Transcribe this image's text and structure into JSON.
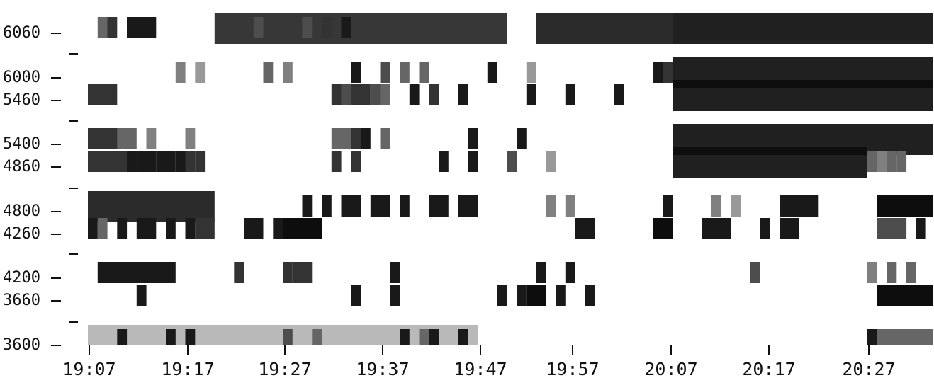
{
  "chart_data": {
    "type": "heatmap",
    "title": "",
    "xlabel": "",
    "ylabel": "",
    "grid": false,
    "x_ticks": [
      "19:07",
      "19:17",
      "19:27",
      "19:37",
      "19:47",
      "19:57",
      "20:07",
      "20:17",
      "20:27"
    ],
    "y_ticks": [
      "6060",
      "6000",
      "5460",
      "5400",
      "4860",
      "4800",
      "4260",
      "4200",
      "3660",
      "3600"
    ],
    "color_scale": [
      "#ffffff",
      "#000000"
    ],
    "bands": [
      {
        "center": "6060",
        "cells": [
          {
            "t": "19:08",
            "d": 1,
            "v": 0.6
          },
          {
            "t": "19:09",
            "d": 1,
            "v": 0.8
          },
          {
            "t": "19:11",
            "d": 2,
            "v": 0.9
          },
          {
            "t": "19:13",
            "d": 1,
            "v": 0.9
          },
          {
            "t": "19:20",
            "d": 30,
            "v": 0.85
          },
          {
            "t": "19:24",
            "d": 1,
            "v": 0.7
          },
          {
            "t": "19:29",
            "d": 1,
            "v": 0.7
          },
          {
            "t": "19:31",
            "d": 1,
            "v": 0.8
          },
          {
            "t": "19:33",
            "d": 1,
            "v": 0.9
          },
          {
            "t": "19:53",
            "d": 14,
            "v": 0.9
          },
          {
            "t": "20:07",
            "d": 28,
            "v": 0.95
          }
        ]
      },
      {
        "center": "6000",
        "cells": [
          {
            "t": "19:16",
            "d": 1,
            "v": 0.5
          },
          {
            "t": "19:18",
            "d": 1,
            "v": 0.4
          },
          {
            "t": "19:25",
            "d": 1,
            "v": 0.6
          },
          {
            "t": "19:27",
            "d": 1,
            "v": 0.5
          },
          {
            "t": "19:34",
            "d": 1,
            "v": 0.9
          },
          {
            "t": "19:37",
            "d": 1,
            "v": 0.7
          },
          {
            "t": "19:39",
            "d": 1,
            "v": 0.6
          },
          {
            "t": "19:41",
            "d": 1,
            "v": 0.6
          },
          {
            "t": "19:48",
            "d": 1,
            "v": 0.9
          },
          {
            "t": "19:52",
            "d": 1,
            "v": 0.4
          },
          {
            "t": "20:05",
            "d": 1,
            "v": 0.9
          },
          {
            "t": "20:06",
            "d": 1,
            "v": 0.8
          },
          {
            "t": "20:07",
            "d": 28,
            "v": 0.95
          }
        ]
      },
      {
        "center": "5460",
        "cells": [
          {
            "t": "19:07",
            "d": 3,
            "v": 0.8
          },
          {
            "t": "19:32",
            "d": 1,
            "v": 0.8
          },
          {
            "t": "19:33",
            "d": 1,
            "v": 0.7
          },
          {
            "t": "19:34",
            "d": 1,
            "v": 0.8
          },
          {
            "t": "19:35",
            "d": 1,
            "v": 0.8
          },
          {
            "t": "19:36",
            "d": 1,
            "v": 0.7
          },
          {
            "t": "19:37",
            "d": 1,
            "v": 0.6
          },
          {
            "t": "19:40",
            "d": 1,
            "v": 0.9
          },
          {
            "t": "19:42",
            "d": 1,
            "v": 0.8
          },
          {
            "t": "19:45",
            "d": 1,
            "v": 0.9
          },
          {
            "t": "19:52",
            "d": 1,
            "v": 0.9
          },
          {
            "t": "19:56",
            "d": 1,
            "v": 0.9
          },
          {
            "t": "20:01",
            "d": 1,
            "v": 0.9
          },
          {
            "t": "20:07",
            "d": 28,
            "v": 0.95
          }
        ]
      },
      {
        "center": "5400",
        "cells": [
          {
            "t": "19:07",
            "d": 4,
            "v": 0.8
          },
          {
            "t": "19:10",
            "d": 2,
            "v": 0.6
          },
          {
            "t": "19:13",
            "d": 1,
            "v": 0.5
          },
          {
            "t": "19:17",
            "d": 1,
            "v": 0.5
          },
          {
            "t": "19:32",
            "d": 2,
            "v": 0.6
          },
          {
            "t": "19:34",
            "d": 1,
            "v": 0.8
          },
          {
            "t": "19:35",
            "d": 1,
            "v": 0.9
          },
          {
            "t": "19:37",
            "d": 1,
            "v": 0.6
          },
          {
            "t": "19:46",
            "d": 1,
            "v": 0.9
          },
          {
            "t": "19:51",
            "d": 1,
            "v": 0.9
          },
          {
            "t": "20:07",
            "d": 28,
            "v": 0.95
          }
        ]
      },
      {
        "center": "4860",
        "cells": [
          {
            "t": "19:07",
            "d": 6,
            "v": 0.8
          },
          {
            "t": "19:11",
            "d": 1,
            "v": 0.9
          },
          {
            "t": "19:12",
            "d": 1,
            "v": 0.9
          },
          {
            "t": "19:13",
            "d": 1,
            "v": 0.9
          },
          {
            "t": "19:14",
            "d": 1,
            "v": 0.9
          },
          {
            "t": "19:15",
            "d": 1,
            "v": 0.9
          },
          {
            "t": "19:16",
            "d": 1,
            "v": 0.9
          },
          {
            "t": "19:17",
            "d": 1,
            "v": 0.8
          },
          {
            "t": "19:18",
            "d": 1,
            "v": 0.8
          },
          {
            "t": "19:32",
            "d": 1,
            "v": 0.8
          },
          {
            "t": "19:34",
            "d": 1,
            "v": 0.8
          },
          {
            "t": "19:43",
            "d": 1,
            "v": 0.9
          },
          {
            "t": "19:46",
            "d": 1,
            "v": 0.9
          },
          {
            "t": "19:50",
            "d": 1,
            "v": 0.7
          },
          {
            "t": "19:54",
            "d": 1,
            "v": 0.4
          },
          {
            "t": "20:07",
            "d": 20,
            "v": 0.95
          },
          {
            "t": "20:27",
            "d": 1,
            "v": 0.6
          },
          {
            "t": "20:28",
            "d": 1,
            "v": 0.5
          },
          {
            "t": "20:29",
            "d": 1,
            "v": 0.6
          },
          {
            "t": "20:30",
            "d": 1,
            "v": 0.6
          }
        ]
      },
      {
        "center": "4800",
        "cells": [
          {
            "t": "19:07",
            "d": 13,
            "v": 0.9
          },
          {
            "t": "19:29",
            "d": 1,
            "v": 0.9
          },
          {
            "t": "19:31",
            "d": 1,
            "v": 0.9
          },
          {
            "t": "19:33",
            "d": 1,
            "v": 0.9
          },
          {
            "t": "19:34",
            "d": 1,
            "v": 0.9
          },
          {
            "t": "19:36",
            "d": 1,
            "v": 0.9
          },
          {
            "t": "19:37",
            "d": 1,
            "v": 0.9
          },
          {
            "t": "19:39",
            "d": 1,
            "v": 0.9
          },
          {
            "t": "19:42",
            "d": 1,
            "v": 0.9
          },
          {
            "t": "19:43",
            "d": 1,
            "v": 0.9
          },
          {
            "t": "19:45",
            "d": 1,
            "v": 0.9
          },
          {
            "t": "19:46",
            "d": 1,
            "v": 0.9
          },
          {
            "t": "19:54",
            "d": 1,
            "v": 0.5
          },
          {
            "t": "19:56",
            "d": 1,
            "v": 0.5
          },
          {
            "t": "20:06",
            "d": 1,
            "v": 0.9
          },
          {
            "t": "20:11",
            "d": 1,
            "v": 0.5
          },
          {
            "t": "20:13",
            "d": 1,
            "v": 0.4
          },
          {
            "t": "20:18",
            "d": 4,
            "v": 0.9
          },
          {
            "t": "20:28",
            "d": 6,
            "v": 0.95
          }
        ]
      },
      {
        "center": "4260",
        "cells": [
          {
            "t": "19:07",
            "d": 1,
            "v": 0.9
          },
          {
            "t": "19:08",
            "d": 1,
            "v": 0.6
          },
          {
            "t": "19:10",
            "d": 1,
            "v": 0.9
          },
          {
            "t": "19:12",
            "d": 1,
            "v": 0.9
          },
          {
            "t": "19:13",
            "d": 1,
            "v": 0.9
          },
          {
            "t": "19:15",
            "d": 1,
            "v": 0.9
          },
          {
            "t": "19:17",
            "d": 1,
            "v": 0.9
          },
          {
            "t": "19:18",
            "d": 2,
            "v": 0.8
          },
          {
            "t": "19:23",
            "d": 2,
            "v": 0.9
          },
          {
            "t": "19:26",
            "d": 1,
            "v": 0.9
          },
          {
            "t": "19:27",
            "d": 4,
            "v": 0.95
          },
          {
            "t": "19:57",
            "d": 1,
            "v": 0.9
          },
          {
            "t": "19:58",
            "d": 1,
            "v": 0.9
          },
          {
            "t": "20:05",
            "d": 2,
            "v": 0.95
          },
          {
            "t": "20:10",
            "d": 1,
            "v": 0.9
          },
          {
            "t": "20:11",
            "d": 1,
            "v": 0.9
          },
          {
            "t": "20:12",
            "d": 1,
            "v": 0.9
          },
          {
            "t": "20:16",
            "d": 1,
            "v": 0.9
          },
          {
            "t": "20:18",
            "d": 2,
            "v": 0.9
          },
          {
            "t": "20:28",
            "d": 3,
            "v": 0.7
          },
          {
            "t": "20:32",
            "d": 1,
            "v": 0.9
          }
        ]
      },
      {
        "center": "4200",
        "cells": [
          {
            "t": "19:08",
            "d": 8,
            "v": 0.9
          },
          {
            "t": "19:22",
            "d": 1,
            "v": 0.8
          },
          {
            "t": "19:27",
            "d": 1,
            "v": 0.8
          },
          {
            "t": "19:28",
            "d": 2,
            "v": 0.8
          },
          {
            "t": "19:38",
            "d": 1,
            "v": 0.9
          },
          {
            "t": "19:53",
            "d": 1,
            "v": 0.9
          },
          {
            "t": "19:56",
            "d": 1,
            "v": 0.9
          },
          {
            "t": "20:15",
            "d": 1,
            "v": 0.7
          },
          {
            "t": "20:27",
            "d": 1,
            "v": 0.5
          },
          {
            "t": "20:29",
            "d": 1,
            "v": 0.6
          },
          {
            "t": "20:31",
            "d": 1,
            "v": 0.6
          }
        ]
      },
      {
        "center": "3660",
        "cells": [
          {
            "t": "19:12",
            "d": 1,
            "v": 0.9
          },
          {
            "t": "19:34",
            "d": 1,
            "v": 0.9
          },
          {
            "t": "19:38",
            "d": 1,
            "v": 0.9
          },
          {
            "t": "19:49",
            "d": 1,
            "v": 0.9
          },
          {
            "t": "19:51",
            "d": 1,
            "v": 0.9
          },
          {
            "t": "19:52",
            "d": 2,
            "v": 0.95
          },
          {
            "t": "19:55",
            "d": 1,
            "v": 0.9
          },
          {
            "t": "19:58",
            "d": 1,
            "v": 0.9
          },
          {
            "t": "20:28",
            "d": 6,
            "v": 0.95
          }
        ]
      },
      {
        "center": "3600",
        "cells": [
          {
            "t": "19:07",
            "d": 40,
            "v": 0.3
          },
          {
            "t": "19:10",
            "d": 1,
            "v": 0.9
          },
          {
            "t": "19:15",
            "d": 1,
            "v": 0.9
          },
          {
            "t": "19:17",
            "d": 1,
            "v": 0.9
          },
          {
            "t": "19:27",
            "d": 1,
            "v": 0.7
          },
          {
            "t": "19:30",
            "d": 1,
            "v": 0.6
          },
          {
            "t": "19:39",
            "d": 1,
            "v": 0.9
          },
          {
            "t": "19:41",
            "d": 1,
            "v": 0.6
          },
          {
            "t": "19:42",
            "d": 1,
            "v": 0.9
          },
          {
            "t": "19:45",
            "d": 1,
            "v": 0.9
          },
          {
            "t": "20:27",
            "d": 1,
            "v": 0.9
          },
          {
            "t": "20:28",
            "d": 6,
            "v": 0.6
          }
        ]
      }
    ]
  }
}
